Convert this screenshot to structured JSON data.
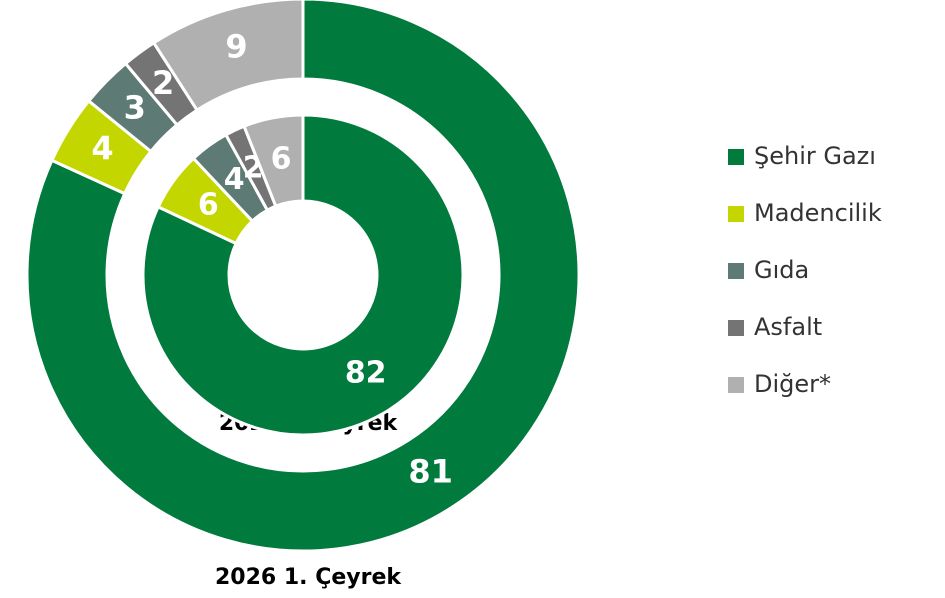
{
  "chart_data": {
    "type": "doughnut",
    "categories": [
      "Şehir Gazı",
      "Madencilik",
      "Gıda",
      "Asfalt",
      "Diğer*"
    ],
    "colors": [
      "#007a3d",
      "#c3d600",
      "#5e7a74",
      "#747474",
      "#b0b0b0"
    ],
    "series": [
      {
        "name": "2026 1. Çeyrek",
        "values": [
          81,
          4,
          3,
          2,
          9
        ]
      },
      {
        "name": "2025 1.Çeyrek",
        "values": [
          82,
          6,
          4,
          2,
          6
        ]
      }
    ],
    "legend": "right"
  }
}
